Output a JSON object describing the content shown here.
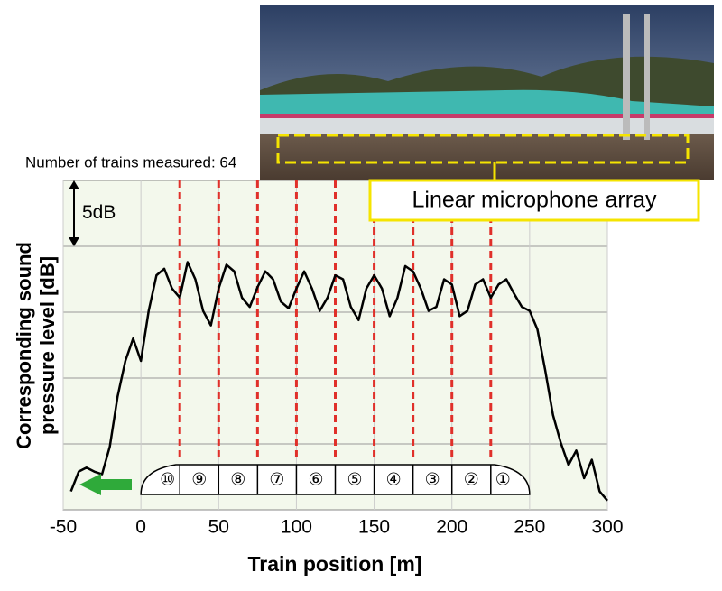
{
  "chart_data": {
    "type": "line",
    "note_text": "Number of trains measured: 64",
    "photo_label": "Linear microphone array",
    "x_label": "Train position [m]",
    "y_label": [
      "Corresponding sound",
      "pressure level [dB]"
    ],
    "scale_bar": {
      "label": "5dB",
      "value": 5
    },
    "x": [
      -45,
      -40,
      -35,
      -30,
      -25,
      -20,
      -15,
      -10,
      -5,
      0,
      5,
      10,
      15,
      20,
      25,
      30,
      35,
      40,
      45,
      50,
      55,
      60,
      65,
      70,
      75,
      80,
      85,
      90,
      95,
      100,
      105,
      110,
      115,
      120,
      125,
      130,
      135,
      140,
      145,
      150,
      155,
      160,
      165,
      170,
      175,
      180,
      185,
      190,
      195,
      200,
      205,
      210,
      215,
      220,
      225,
      230,
      235,
      240,
      245,
      250,
      255,
      260,
      265,
      270,
      275,
      280,
      285,
      290,
      295,
      300
    ],
    "series": [
      {
        "color": "#000000",
        "values": [
          1.4,
          2.9,
          3.2,
          2.9,
          2.7,
          4.8,
          8.6,
          11.3,
          13.0,
          11.3,
          15.1,
          17.8,
          18.3,
          16.8,
          16.1,
          18.8,
          17.5,
          15.1,
          14.0,
          16.8,
          18.6,
          18.1,
          16.1,
          15.4,
          16.9,
          18.1,
          17.5,
          15.8,
          15.3,
          16.8,
          18.1,
          16.8,
          15.1,
          16.1,
          17.8,
          17.5,
          15.4,
          14.4,
          16.8,
          17.8,
          16.8,
          14.7,
          16.1,
          18.5,
          18.1,
          16.8,
          15.1,
          15.4,
          17.5,
          17.1,
          14.7,
          15.1,
          17.1,
          17.5,
          16.1,
          17.1,
          17.5,
          16.4,
          15.4,
          15.1,
          13.7,
          10.6,
          7.2,
          5.1,
          3.4,
          4.5,
          2.4,
          3.8,
          1.4,
          0.7
        ]
      }
    ],
    "xlim": [
      -50,
      300
    ],
    "xticks": [
      -50,
      0,
      50,
      100,
      150,
      200,
      250,
      300
    ],
    "ylim": [
      0,
      25
    ],
    "yticks": [
      5,
      10,
      15,
      20
    ],
    "grid": true,
    "car_boundaries": [
      25,
      50,
      75,
      100,
      125,
      150,
      175,
      200,
      225
    ],
    "boundary_color": "#e0302a",
    "cars": [
      "⑩",
      "⑨",
      "⑧",
      "⑦",
      "⑥",
      "⑤",
      "④",
      "③",
      "②",
      "①"
    ]
  }
}
